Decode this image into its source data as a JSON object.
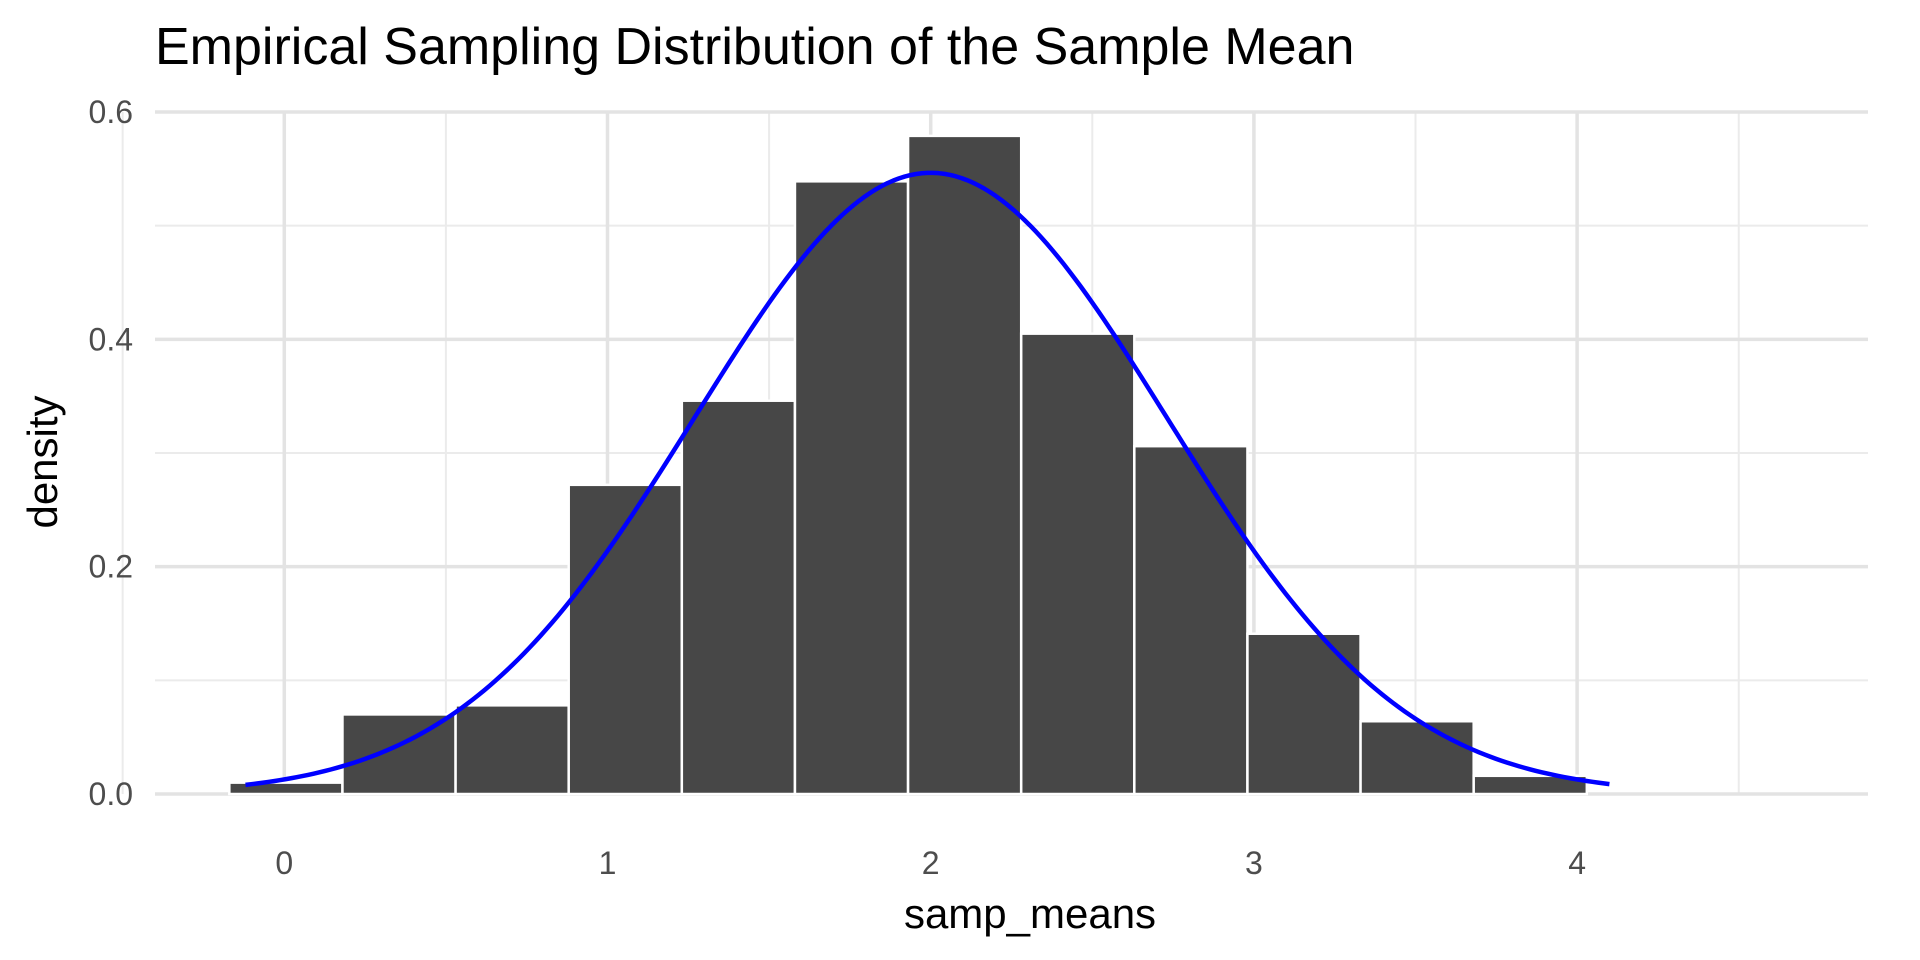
{
  "chart_data": {
    "type": "bar",
    "title": "Empirical Sampling Distribution of the Sample Mean",
    "xlabel": "samp_means",
    "ylabel": "density",
    "xlim": [
      -0.4,
      4.9
    ],
    "ylim": [
      0,
      0.6
    ],
    "x_ticks": [
      0,
      1,
      2,
      3,
      4
    ],
    "x_tick_labels": [
      "0",
      "1",
      "2",
      "3",
      "4"
    ],
    "x_minor_ticks": [
      -0.5,
      0.5,
      1.5,
      2.5,
      3.5,
      4.5
    ],
    "y_ticks": [
      0,
      0.2,
      0.4,
      0.6
    ],
    "y_tick_labels": [
      "0.0",
      "0.2",
      "0.4",
      "0.6"
    ],
    "y_minor_ticks": [
      0.1,
      0.3,
      0.5
    ],
    "grid": true,
    "legend": "none",
    "bar_color": "#474747",
    "bar_edge_color": "#ffffff",
    "curve_color": "#0000ff",
    "histogram": {
      "bin_edges": [
        -0.17,
        0.18,
        0.53,
        0.88,
        1.23,
        1.58,
        1.93,
        2.28,
        2.63,
        2.98,
        3.33,
        3.68,
        4.03,
        4.38
      ],
      "values": [
        0.01,
        0.07,
        0.078,
        0.272,
        0.346,
        0.539,
        0.579,
        0.405,
        0.306,
        0.141,
        0.064,
        0.016,
        0.0
      ]
    },
    "density_curve": {
      "type": "normal",
      "mean": 2.0,
      "sd": 0.73,
      "x_range": [
        -0.12,
        4.1
      ]
    }
  }
}
